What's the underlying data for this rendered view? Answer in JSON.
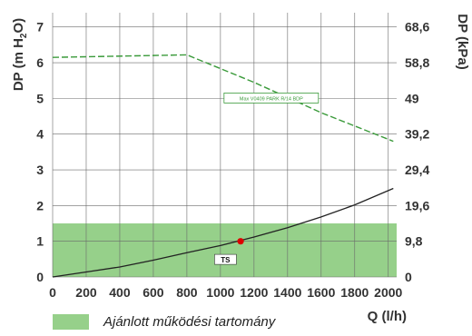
{
  "chart_data": {
    "type": "line",
    "x": [
      0,
      200,
      400,
      600,
      800,
      1000,
      1200,
      1400,
      1600,
      1800,
      2000
    ],
    "xlabel": "Q (l/h)",
    "xlim": [
      0,
      2050
    ],
    "ylabel_left": "DP (m H2O)",
    "ylabel_left_sub": "2",
    "ylim_left": [
      0,
      7.4
    ],
    "yticks_left": [
      "0",
      "1",
      "2",
      "3",
      "4",
      "5",
      "6",
      "7"
    ],
    "ylabel_right": "DP (kPa)",
    "yticks_right": [
      "0",
      "9,8",
      "19,6",
      "29,4",
      "39,2",
      "49",
      "58,8",
      "68,6"
    ],
    "grid": true,
    "series": [
      {
        "name": "Max V0409 PARK R/14 BDP",
        "style": "dashed",
        "color": "#3a9a3a",
        "points": [
          [
            0,
            6.15
          ],
          [
            800,
            6.22
          ],
          [
            1200,
            5.45
          ],
          [
            1600,
            4.6
          ],
          [
            2030,
            3.8
          ]
        ]
      },
      {
        "name": "TS",
        "style": "solid",
        "color": "#222222",
        "points": [
          [
            0,
            0
          ],
          [
            200,
            0.14
          ],
          [
            400,
            0.28
          ],
          [
            600,
            0.47
          ],
          [
            800,
            0.68
          ],
          [
            1000,
            0.88
          ],
          [
            1200,
            1.12
          ],
          [
            1400,
            1.38
          ],
          [
            1600,
            1.68
          ],
          [
            1800,
            2.02
          ],
          [
            2030,
            2.48
          ]
        ]
      }
    ],
    "operating_point": {
      "x": 1120,
      "y": 1.0,
      "color": "#dd0000"
    },
    "recommended_range": {
      "y_from": 0,
      "y_to": 1.5,
      "color": "#96d08a"
    },
    "legend": {
      "position": "bottom-left",
      "label": "Ajánlott működési tartomány"
    }
  }
}
